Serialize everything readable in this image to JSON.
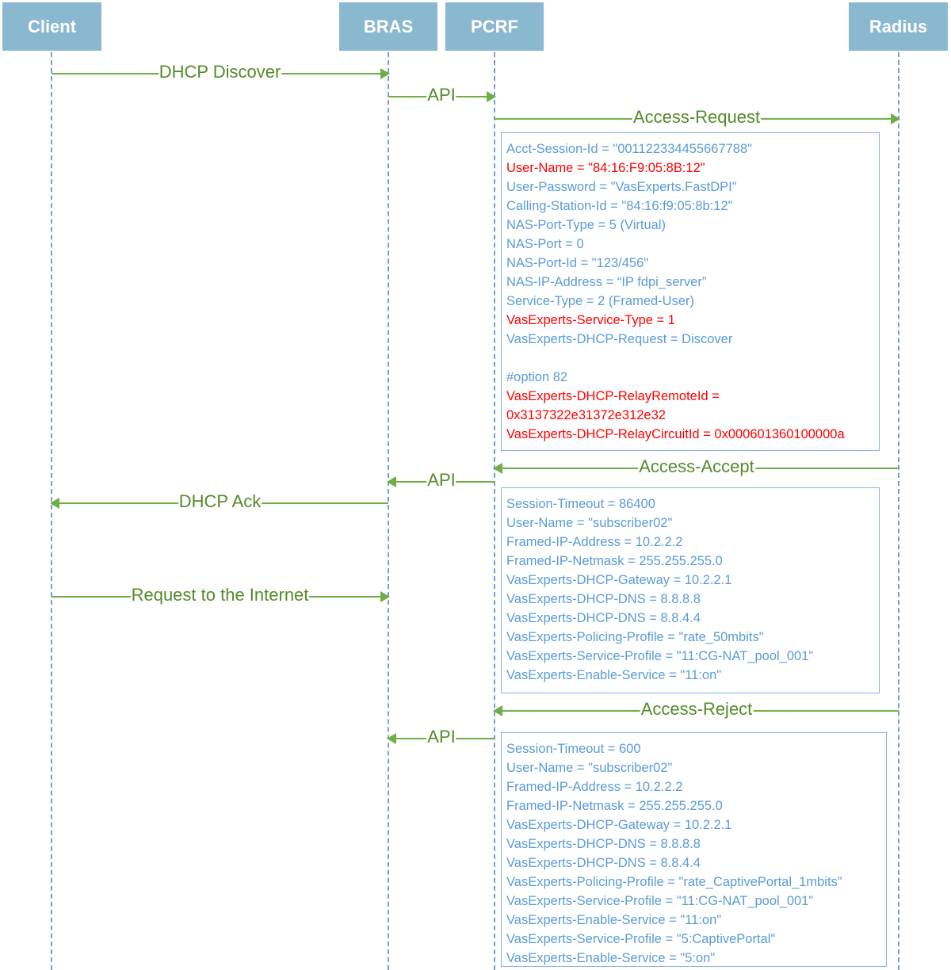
{
  "colors": {
    "actor_fill": "#8ab8cf",
    "arrow": "#70ad47",
    "param_text": "#5b9bd5",
    "highlight": "#ff0000"
  },
  "actors": [
    "Client",
    "BRAS",
    "PCRF",
    "Radius"
  ],
  "messages": [
    {
      "label": "DHCP Discover",
      "from": "Client",
      "to": "BRAS"
    },
    {
      "label": "API",
      "from": "BRAS",
      "to": "PCRF"
    },
    {
      "label": "Access-Request",
      "from": "PCRF",
      "to": "Radius"
    },
    {
      "label": "Access-Accept",
      "from": "Radius",
      "to": "PCRF"
    },
    {
      "label": "API",
      "from": "PCRF",
      "to": "BRAS"
    },
    {
      "label": "DHCP Ack",
      "from": "BRAS",
      "to": "Client"
    },
    {
      "label": "Request to the Internet",
      "from": "Client",
      "to": "BRAS"
    },
    {
      "label": "Access-Reject",
      "from": "Radius",
      "to": "PCRF"
    },
    {
      "label": "API",
      "from": "PCRF",
      "to": "BRAS"
    }
  ],
  "boxes": [
    {
      "name": "access-request-attributes",
      "lines": [
        {
          "text": "Acct-Session-Id = \"001122334455667788\""
        },
        {
          "text": "User-Name = \"84:16:F9:05:8B:12\"",
          "highlight": true
        },
        {
          "text": "User-Password = \"VasExperts.FastDPI\""
        },
        {
          "text": "Calling-Station-Id = \"84:16:f9:05:8b:12\""
        },
        {
          "text": "NAS-Port-Type = 5 (Virtual)"
        },
        {
          "text": "NAS-Port = 0"
        },
        {
          "text": "NAS-Port-Id = \"123/456\""
        },
        {
          "text": "NAS-IP-Address = “IP fdpi_server”"
        },
        {
          "text": "Service-Type = 2 (Framed-User)"
        },
        {
          "text": "VasExperts-Service-Type = 1",
          "highlight": true
        },
        {
          "text": "VasExperts-DHCP-Request = Discover"
        },
        {
          "text": ""
        },
        {
          "text": "#option 82"
        },
        {
          "text": "VasExperts-DHCP-RelayRemoteId =",
          "highlight": true
        },
        {
          "text": "0x3137322e31372e312e32",
          "highlight": true
        },
        {
          "text": "VasExperts-DHCP-RelayCircuitId = 0x000601360100000a",
          "highlight": true
        }
      ]
    },
    {
      "name": "access-accept-attributes",
      "lines": [
        {
          "text": "Session-Timeout = 86400"
        },
        {
          "text": "User-Name = \"subscriber02\""
        },
        {
          "text": "Framed-IP-Address = 10.2.2.2"
        },
        {
          "text": "Framed-IP-Netmask = 255.255.255.0"
        },
        {
          "text": "VasExperts-DHCP-Gateway = 10.2.2.1"
        },
        {
          "text": "VasExperts-DHCP-DNS = 8.8.8.8"
        },
        {
          "text": "VasExperts-DHCP-DNS = 8.8.4.4"
        },
        {
          "text": "VasExperts-Policing-Profile = \"rate_50mbits\""
        },
        {
          "text": "VasExperts-Service-Profile = \"11:CG-NAT_pool_001\""
        },
        {
          "text": "VasExperts-Enable-Service = \"11:on\""
        }
      ]
    },
    {
      "name": "access-reject-attributes",
      "lines": [
        {
          "text": "Session-Timeout = 600"
        },
        {
          "text": "User-Name = \"subscriber02\""
        },
        {
          "text": "Framed-IP-Address = 10.2.2.2"
        },
        {
          "text": "Framed-IP-Netmask = 255.255.255.0"
        },
        {
          "text": "VasExperts-DHCP-Gateway = 10.2.2.1"
        },
        {
          "text": "VasExperts-DHCP-DNS = 8.8.8.8"
        },
        {
          "text": "VasExperts-DHCP-DNS = 8.8.4.4"
        },
        {
          "text": "VasExperts-Policing-Profile = \"rate_CaptivePortal_1mbits\""
        },
        {
          "text": "VasExperts-Service-Profile = \"11:CG-NAT_pool_001\""
        },
        {
          "text": "VasExperts-Enable-Service = \"11:on\""
        },
        {
          "text": "VasExperts-Service-Profile = \"5:CaptivePortal\""
        },
        {
          "text": "VasExperts-Enable-Service = \"5:on\""
        }
      ]
    }
  ]
}
